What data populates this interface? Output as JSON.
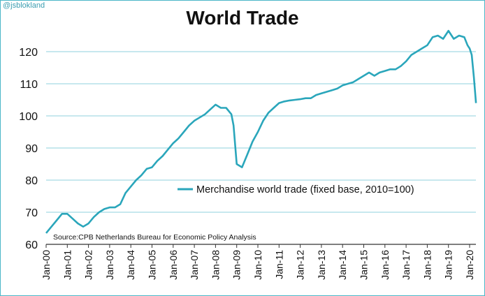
{
  "watermark": "@jsblokland",
  "source": "Source:CPB Netherlands Bureau for Economic Policy Analysis",
  "colors": {
    "line": "#2aa6bb",
    "grid": "#8fd1dc",
    "frame": "#4bb7c8",
    "text": "#111111"
  },
  "chart_data": {
    "type": "line",
    "title": "World Trade",
    "xlabel": "",
    "ylabel": "",
    "ylim": [
      60,
      128
    ],
    "yticks": [
      60,
      70,
      80,
      90,
      100,
      110,
      120
    ],
    "xtick_labels": [
      "Jan-00",
      "Jan-01",
      "Jan-02",
      "Jan-03",
      "Jan-04",
      "Jan-05",
      "Jan-06",
      "Jan-07",
      "Jan-08",
      "Jan-09",
      "Jan-10",
      "Jan-11",
      "Jan-12",
      "Jan-13",
      "Jan-14",
      "Jan-15",
      "Jan-16",
      "Jan-17",
      "Jan-18",
      "Jan-19",
      "Jan-20"
    ],
    "grid": true,
    "legend_position": "center-right",
    "series": [
      {
        "name": "Merchandise world trade (fixed base, 2010=100)",
        "points": [
          [
            2000.0,
            63.5
          ],
          [
            2000.25,
            65.5
          ],
          [
            2000.5,
            67.5
          ],
          [
            2000.75,
            69.5
          ],
          [
            2001.0,
            69.5
          ],
          [
            2001.25,
            68.0
          ],
          [
            2001.5,
            66.5
          ],
          [
            2001.75,
            65.5
          ],
          [
            2002.0,
            66.5
          ],
          [
            2002.25,
            68.5
          ],
          [
            2002.5,
            70.0
          ],
          [
            2002.75,
            71.0
          ],
          [
            2003.0,
            71.5
          ],
          [
            2003.25,
            71.5
          ],
          [
            2003.5,
            72.5
          ],
          [
            2003.75,
            76.0
          ],
          [
            2004.0,
            78.0
          ],
          [
            2004.25,
            80.0
          ],
          [
            2004.5,
            81.5
          ],
          [
            2004.75,
            83.5
          ],
          [
            2005.0,
            84.0
          ],
          [
            2005.25,
            86.0
          ],
          [
            2005.5,
            87.5
          ],
          [
            2005.75,
            89.5
          ],
          [
            2006.0,
            91.5
          ],
          [
            2006.25,
            93.0
          ],
          [
            2006.5,
            95.0
          ],
          [
            2006.75,
            97.0
          ],
          [
            2007.0,
            98.5
          ],
          [
            2007.25,
            99.5
          ],
          [
            2007.5,
            100.5
          ],
          [
            2007.75,
            102.0
          ],
          [
            2008.0,
            103.5
          ],
          [
            2008.25,
            102.5
          ],
          [
            2008.5,
            102.5
          ],
          [
            2008.75,
            100.5
          ],
          [
            2008.85,
            97.0
          ],
          [
            2009.0,
            85.0
          ],
          [
            2009.25,
            84.0
          ],
          [
            2009.5,
            88.0
          ],
          [
            2009.75,
            92.0
          ],
          [
            2010.0,
            95.0
          ],
          [
            2010.25,
            98.5
          ],
          [
            2010.5,
            101.0
          ],
          [
            2010.75,
            102.5
          ],
          [
            2011.0,
            104.0
          ],
          [
            2011.25,
            104.5
          ],
          [
            2011.5,
            104.8
          ],
          [
            2011.75,
            105.0
          ],
          [
            2012.0,
            105.2
          ],
          [
            2012.25,
            105.5
          ],
          [
            2012.5,
            105.5
          ],
          [
            2012.75,
            106.5
          ],
          [
            2013.0,
            107.0
          ],
          [
            2013.25,
            107.5
          ],
          [
            2013.5,
            108.0
          ],
          [
            2013.75,
            108.5
          ],
          [
            2014.0,
            109.5
          ],
          [
            2014.25,
            110.0
          ],
          [
            2014.5,
            110.5
          ],
          [
            2014.75,
            111.5
          ],
          [
            2015.0,
            112.5
          ],
          [
            2015.25,
            113.5
          ],
          [
            2015.5,
            112.5
          ],
          [
            2015.75,
            113.5
          ],
          [
            2016.0,
            114.0
          ],
          [
            2016.25,
            114.5
          ],
          [
            2016.5,
            114.5
          ],
          [
            2016.75,
            115.5
          ],
          [
            2017.0,
            117.0
          ],
          [
            2017.25,
            119.0
          ],
          [
            2017.5,
            120.0
          ],
          [
            2017.75,
            121.0
          ],
          [
            2018.0,
            122.0
          ],
          [
            2018.25,
            124.5
          ],
          [
            2018.5,
            125.0
          ],
          [
            2018.75,
            124.0
          ],
          [
            2019.0,
            126.5
          ],
          [
            2019.25,
            124.0
          ],
          [
            2019.5,
            125.0
          ],
          [
            2019.75,
            124.5
          ],
          [
            2019.9,
            122.0
          ],
          [
            2020.0,
            121.0
          ],
          [
            2020.1,
            119.0
          ],
          [
            2020.2,
            112.0
          ],
          [
            2020.3,
            104.0
          ]
        ]
      }
    ]
  }
}
